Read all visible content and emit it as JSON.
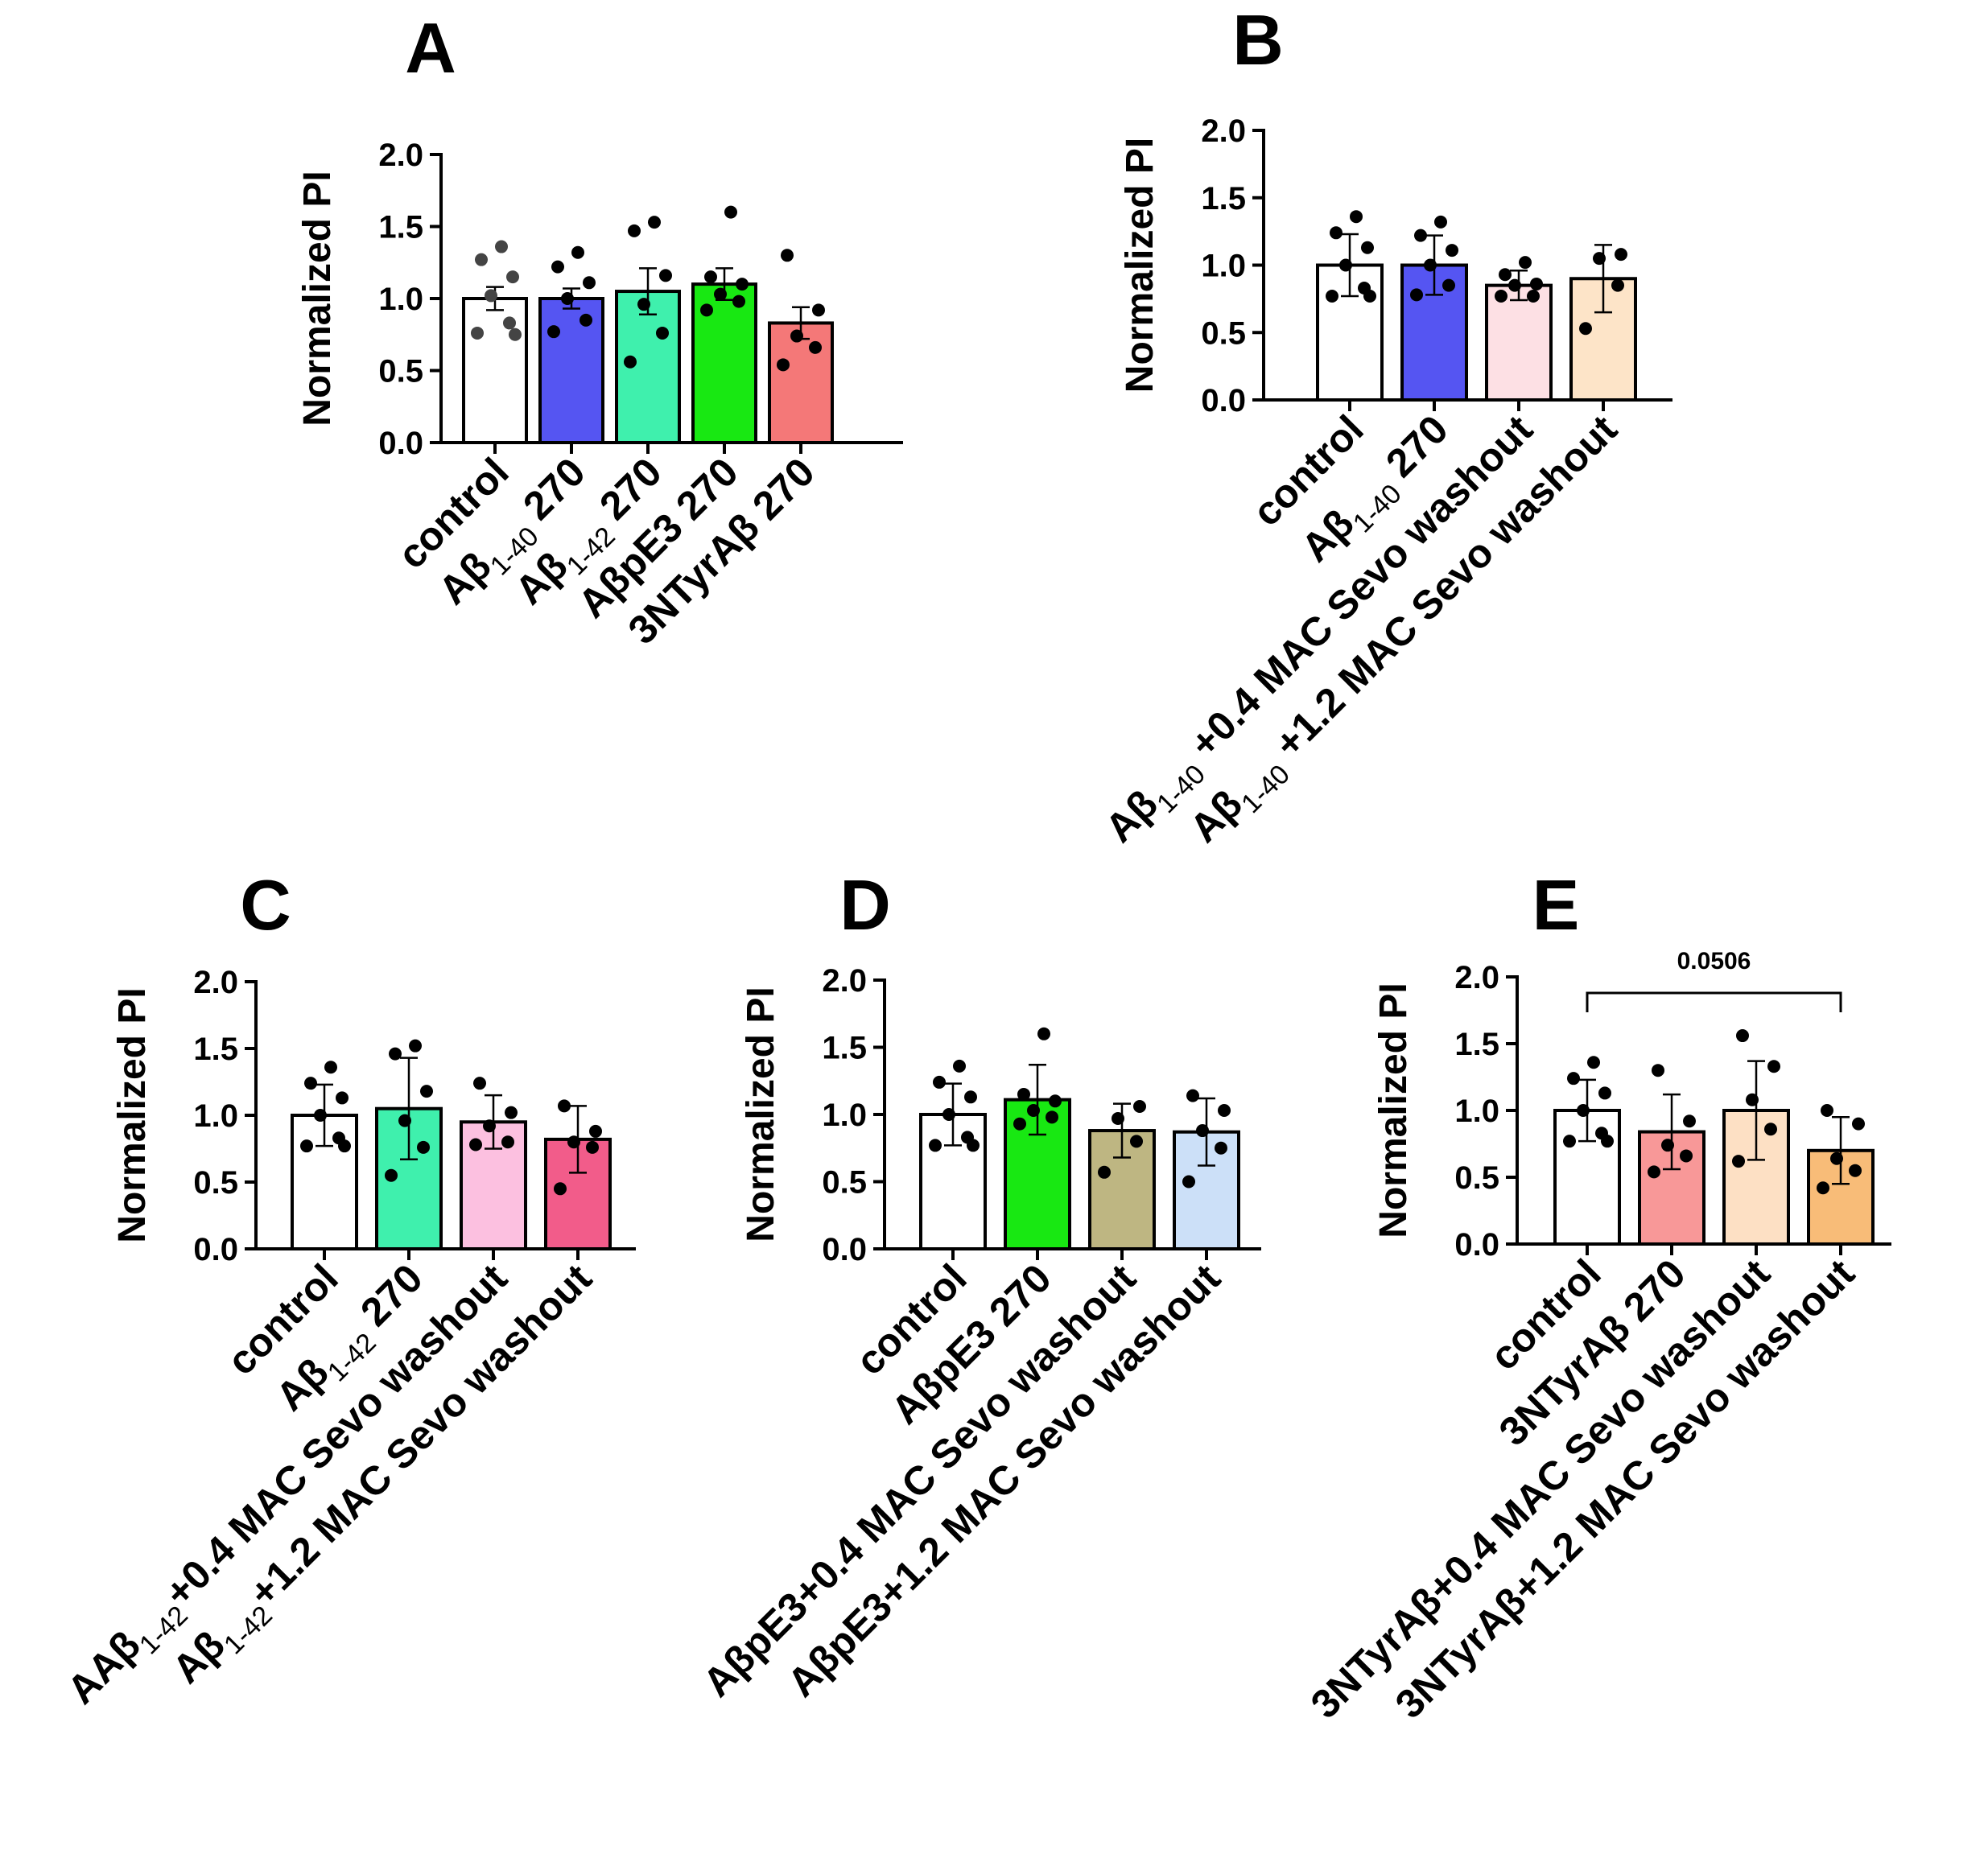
{
  "chart_data": [
    {
      "panel": "A",
      "type": "bar",
      "title": "A",
      "ylabel": "Normalized PI",
      "xlabel": "",
      "ylim": [
        0,
        2
      ],
      "yticks": [
        "0.0",
        "0.5",
        "1.0",
        "1.5",
        "2.0"
      ],
      "categories": [
        {
          "parts": [
            "control"
          ]
        },
        {
          "parts": [
            "Aβ",
            {
              "sub": "1-40"
            },
            " 270"
          ]
        },
        {
          "parts": [
            "Aβ",
            {
              "sub": "1-42"
            },
            " 270"
          ]
        },
        {
          "parts": [
            "AβpE3 270"
          ]
        },
        {
          "parts": [
            "3NTyrAβ 270"
          ]
        }
      ],
      "values": [
        1.0,
        1.0,
        1.05,
        1.1,
        0.83
      ],
      "errors": [
        0.08,
        0.07,
        0.16,
        0.11,
        0.11
      ],
      "colors": [
        "#ffffff",
        "#5555f2",
        "#3ff0ad",
        "#18e812",
        "#f47878"
      ],
      "points": [
        [
          0.76,
          0.83,
          1.02,
          1.15,
          1.27,
          1.36,
          0.75
        ],
        [
          0.77,
          0.85,
          1.0,
          1.11,
          1.22,
          1.32
        ],
        [
          0.56,
          0.76,
          0.96,
          1.16,
          1.47,
          1.53
        ],
        [
          0.92,
          0.98,
          1.03,
          1.1,
          1.15,
          1.6
        ],
        [
          0.54,
          0.66,
          0.74,
          0.92,
          1.3
        ]
      ]
    },
    {
      "panel": "B",
      "type": "bar",
      "title": "B",
      "ylabel": "Normalized PI",
      "xlabel": "",
      "ylim": [
        0,
        2
      ],
      "yticks": [
        "0.0",
        "0.5",
        "1.0",
        "1.5",
        "2.0"
      ],
      "categories": [
        {
          "parts": [
            "control"
          ]
        },
        {
          "parts": [
            "Aβ",
            {
              "sub": "1-40"
            },
            " 270"
          ]
        },
        {
          "parts": [
            "Aβ",
            {
              "sub": "1-40"
            },
            " +0.4 MAC Sevo  washout"
          ]
        },
        {
          "parts": [
            "Aβ",
            {
              "sub": "1-40"
            },
            " +1.2 MAC Sevo  washout"
          ]
        }
      ],
      "values": [
        1.0,
        1.0,
        0.85,
        0.9
      ],
      "errors": [
        0.23,
        0.22,
        0.11,
        0.25
      ],
      "colors": [
        "#ffffff",
        "#5555f2",
        "#fde0e4",
        "#fde4c8"
      ],
      "points": [
        [
          0.77,
          0.83,
          1.0,
          1.13,
          1.24,
          1.36,
          0.77
        ],
        [
          0.78,
          0.85,
          1.0,
          1.11,
          1.22,
          1.32
        ],
        [
          0.77,
          0.77,
          0.85,
          0.86,
          0.93,
          1.02
        ],
        [
          0.53,
          0.85,
          1.05,
          1.08
        ]
      ]
    },
    {
      "panel": "C",
      "type": "bar",
      "title": "C",
      "ylabel": "Normalized PI",
      "xlabel": "",
      "ylim": [
        0,
        2
      ],
      "yticks": [
        "0.0",
        "0.5",
        "1.0",
        "1.5",
        "2.0"
      ],
      "categories": [
        {
          "parts": [
            "control"
          ]
        },
        {
          "parts": [
            "Aβ",
            {
              "sub": "1-42"
            },
            " 270"
          ]
        },
        {
          "parts": [
            "AAβ",
            {
              "sub": "1-42"
            },
            "+0.4 MAC Sevo  washout"
          ]
        },
        {
          "parts": [
            "Aβ",
            {
              "sub": "1-42"
            },
            "+1.2 MAC Sevo  washout"
          ]
        }
      ],
      "values": [
        1.0,
        1.05,
        0.95,
        0.82
      ],
      "errors": [
        0.23,
        0.38,
        0.2,
        0.25
      ],
      "colors": [
        "#ffffff",
        "#3ff0ad",
        "#fcc0e0",
        "#f25c8a"
      ],
      "points": [
        [
          0.77,
          0.83,
          1.0,
          1.13,
          1.24,
          1.36,
          0.77
        ],
        [
          0.55,
          0.76,
          0.96,
          1.18,
          1.46,
          1.52
        ],
        [
          0.78,
          0.8,
          0.92,
          1.02,
          1.24
        ],
        [
          0.45,
          0.76,
          0.8,
          0.88,
          1.07
        ]
      ]
    },
    {
      "panel": "D",
      "type": "bar",
      "title": "D",
      "ylabel": "Normalized PI",
      "xlabel": "",
      "ylim": [
        0,
        2
      ],
      "yticks": [
        "0.0",
        "0.5",
        "1.0",
        "1.5",
        "2.0"
      ],
      "categories": [
        {
          "parts": [
            "control"
          ]
        },
        {
          "parts": [
            "AβpE3 270"
          ]
        },
        {
          "parts": [
            "AβpE3+0.4 MAC Sevo  washout"
          ]
        },
        {
          "parts": [
            "AβpE3+1.2 MAC Sevo  washout"
          ]
        }
      ],
      "values": [
        1.0,
        1.11,
        0.88,
        0.87
      ],
      "errors": [
        0.23,
        0.26,
        0.2,
        0.25
      ],
      "colors": [
        "#ffffff",
        "#18e812",
        "#beb682",
        "#cce0f8"
      ],
      "points": [
        [
          0.77,
          0.83,
          1.0,
          1.13,
          1.24,
          1.36,
          0.77
        ],
        [
          0.93,
          0.98,
          1.03,
          1.1,
          1.15,
          1.6
        ],
        [
          0.57,
          0.8,
          0.97,
          1.06
        ],
        [
          0.5,
          0.75,
          0.88,
          1.03,
          1.14
        ]
      ]
    },
    {
      "panel": "E",
      "type": "bar",
      "title": "E",
      "ylabel": "Normalized PI",
      "xlabel": "",
      "ylim": [
        0,
        2
      ],
      "yticks": [
        "0.0",
        "0.5",
        "1.0",
        "1.5",
        "2.0"
      ],
      "categories": [
        {
          "parts": [
            "control"
          ]
        },
        {
          "parts": [
            "3NTyrAβ 270"
          ]
        },
        {
          "parts": [
            "3NTyrAβ+0.4 MAC Sevo  washout"
          ]
        },
        {
          "parts": [
            "3NTyrAβ+1.2 MAC Sevo  washout"
          ]
        }
      ],
      "values": [
        1.0,
        0.84,
        1.0,
        0.7
      ],
      "errors": [
        0.23,
        0.28,
        0.37,
        0.25
      ],
      "colors": [
        "#ffffff",
        "#f89898",
        "#fde0c4",
        "#f8bc78"
      ],
      "points": [
        [
          0.77,
          0.83,
          1.0,
          1.13,
          1.24,
          1.36,
          0.77
        ],
        [
          0.54,
          0.66,
          0.74,
          0.92,
          1.3
        ],
        [
          0.62,
          0.86,
          1.08,
          1.33,
          1.56
        ],
        [
          0.42,
          0.55,
          0.64,
          0.9,
          1.0
        ]
      ],
      "annotation": {
        "label": "0.0506",
        "from": 0,
        "to": 3
      }
    }
  ]
}
